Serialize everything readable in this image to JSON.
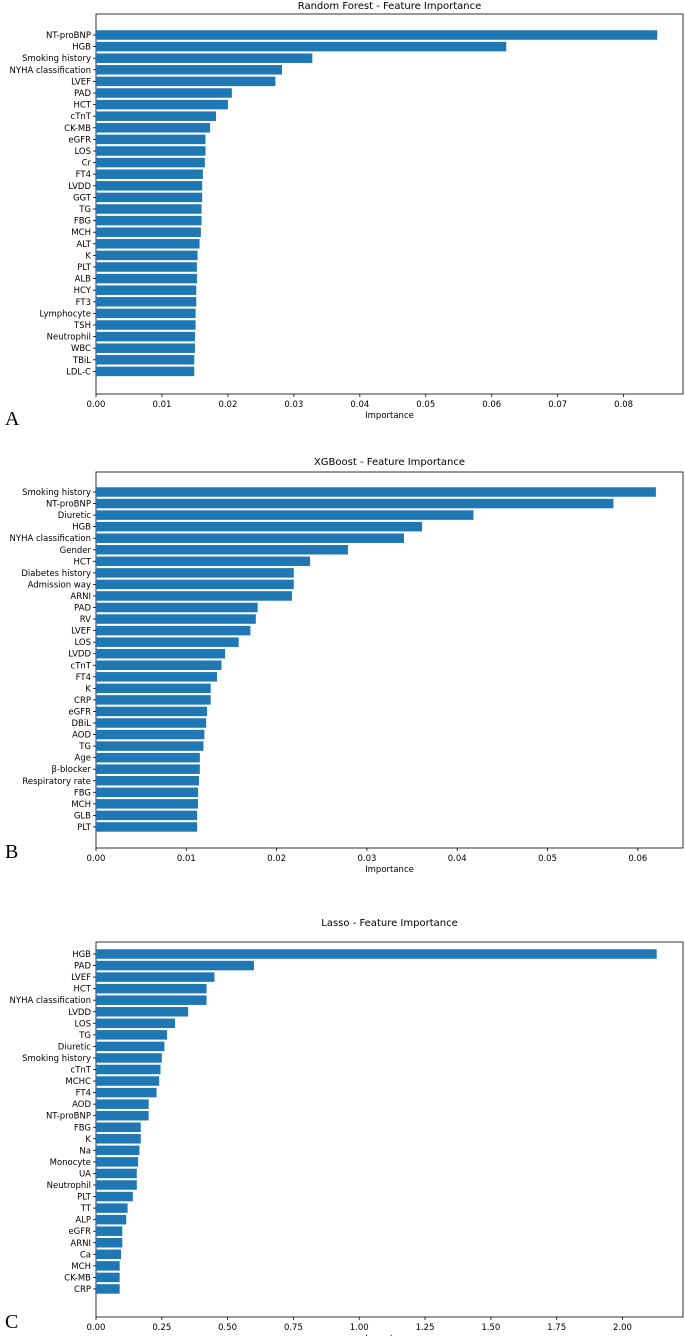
{
  "figure": {
    "panels": [
      "A",
      "B",
      "C"
    ]
  },
  "chart_data": [
    {
      "type": "bar",
      "orientation": "horizontal",
      "title": "Random Forest - Feature Importance",
      "xlabel": "Importance",
      "ylabel": "",
      "xlim": [
        0,
        0.089
      ],
      "xticks": [
        0.0,
        0.01,
        0.02,
        0.03,
        0.04,
        0.05,
        0.06,
        0.07,
        0.08
      ],
      "xtick_labels": [
        "0.00",
        "0.01",
        "0.02",
        "0.03",
        "0.04",
        "0.05",
        "0.06",
        "0.07",
        "0.08"
      ],
      "bar_color": "#1f77b4",
      "categories": [
        "NT-proBNP",
        "HGB",
        "Smoking history",
        "NYHA classification",
        "LVEF",
        "PAD",
        "HCT",
        "cTnT",
        "CK-MB",
        "eGFR",
        "LOS",
        "Cr",
        "FT4",
        "LVDD",
        "GGT",
        "TG",
        "FBG",
        "MCH",
        "ALT",
        "K",
        "PLT",
        "ALB",
        "HCY",
        "FT3",
        "Lymphocyte",
        "TSH",
        "Neutrophil",
        "WBC",
        "TBiL",
        "LDL-C"
      ],
      "values": [
        0.0851,
        0.0622,
        0.0328,
        0.0282,
        0.0272,
        0.0206,
        0.02,
        0.0182,
        0.0173,
        0.0166,
        0.0166,
        0.0165,
        0.0162,
        0.0161,
        0.0161,
        0.016,
        0.016,
        0.0159,
        0.0157,
        0.0154,
        0.0153,
        0.0153,
        0.0152,
        0.0152,
        0.0151,
        0.0151,
        0.015,
        0.015,
        0.0149,
        0.0149
      ]
    },
    {
      "type": "bar",
      "orientation": "horizontal",
      "title": "XGBoost - Feature Importance",
      "xlabel": "Importance",
      "ylabel": "",
      "xlim": [
        0,
        0.065
      ],
      "xticks": [
        0.0,
        0.01,
        0.02,
        0.03,
        0.04,
        0.05,
        0.06
      ],
      "xtick_labels": [
        "0.00",
        "0.01",
        "0.02",
        "0.03",
        "0.04",
        "0.05",
        "0.06"
      ],
      "bar_color": "#1f77b4",
      "categories": [
        "Smoking history",
        "NT-proBNP",
        "Diuretic",
        "HGB",
        "NYHA classification",
        "Gender",
        "HCT",
        "Diabetes history",
        "Admission way",
        "ARNI",
        "PAD",
        "RV",
        "LVEF",
        "LOS",
        "LVDD",
        "cTnT",
        "FT4",
        "K",
        "CRP",
        "eGFR",
        "DBiL",
        "AOD",
        "TG",
        "Age",
        "β-blocker",
        "Respiratory rate",
        "FBG",
        "MCH",
        "GLB",
        "PLT"
      ],
      "values": [
        0.062,
        0.0573,
        0.0418,
        0.0361,
        0.0341,
        0.0279,
        0.0237,
        0.0219,
        0.0219,
        0.0217,
        0.0179,
        0.0177,
        0.0171,
        0.0158,
        0.0143,
        0.0139,
        0.0134,
        0.0127,
        0.0127,
        0.0123,
        0.0122,
        0.012,
        0.0119,
        0.0115,
        0.0115,
        0.0114,
        0.0113,
        0.0113,
        0.0112,
        0.0112
      ]
    },
    {
      "type": "bar",
      "orientation": "horizontal",
      "title": "Lasso - Feature Importance",
      "xlabel": "Importance",
      "ylabel": "",
      "xlim": [
        0,
        2.23
      ],
      "xticks": [
        0.0,
        0.25,
        0.5,
        0.75,
        1.0,
        1.25,
        1.5,
        1.75,
        2.0
      ],
      "xtick_labels": [
        "0.00",
        "0.25",
        "0.50",
        "0.75",
        "1.00",
        "1.25",
        "1.50",
        "1.75",
        "2.00"
      ],
      "bar_color": "#1f77b4",
      "categories": [
        "HGB",
        "PAD",
        "LVEF",
        "HCT",
        "NYHA classification",
        "LVDD",
        "LOS",
        "TG",
        "Diuretic",
        "Smoking history",
        "cTnT",
        "MCHC",
        "FT4",
        "AOD",
        "NT-proBNP",
        "FBG",
        "K",
        "Na",
        "Monocyte",
        "UA",
        "Neutrophil",
        "PLT",
        "TT",
        "ALP",
        "eGFR",
        "ARNI",
        "Ca",
        "MCH",
        "CK-MB",
        "CRP"
      ],
      "values": [
        2.13,
        0.6,
        0.45,
        0.42,
        0.42,
        0.35,
        0.3,
        0.27,
        0.26,
        0.25,
        0.245,
        0.24,
        0.23,
        0.2,
        0.2,
        0.17,
        0.17,
        0.165,
        0.16,
        0.155,
        0.155,
        0.14,
        0.12,
        0.115,
        0.1,
        0.1,
        0.095,
        0.09,
        0.09,
        0.09
      ]
    }
  ]
}
